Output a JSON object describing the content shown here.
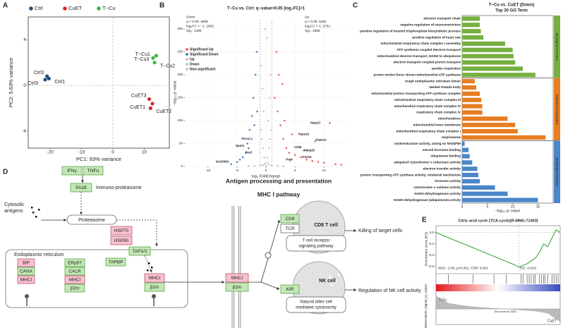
{
  "chart_data": [
    {
      "type": "scatter",
      "label": "A",
      "frame": true,
      "zero_lines": true,
      "legend": "top",
      "xlabel": "PC1: 93% variance",
      "ylabel": "PC2: 5.63% variance",
      "xlim": [
        -27,
        18
      ],
      "ylim": [
        -5.5,
        6
      ],
      "xticks": [
        -20,
        -10,
        0,
        10
      ],
      "yticks": [
        -4,
        0,
        4
      ],
      "series": [
        {
          "name": "Ctrl",
          "color": "#1f4e79",
          "x": [
            -21,
            -21.6,
            -20.4
          ],
          "y": [
            0.8,
            0.5,
            0.6
          ],
          "labels": [
            "Ctrl2",
            "Ctrl3",
            "Ctrl1"
          ]
        },
        {
          "name": "CuET",
          "color": "#d62728",
          "x": [
            11.6,
            12.6,
            12.0
          ],
          "y": [
            -1.2,
            -1.6,
            -2.0
          ],
          "labels": [
            "CuET3",
            "CuET1",
            "CuET2"
          ]
        },
        {
          "name": "T−Cu",
          "color": "#3cb34a",
          "x": [
            12.8,
            13.8,
            13.3
          ],
          "y": [
            2.4,
            2.6,
            2.0
          ],
          "labels": [
            "T−Cu1",
            "T−Cu3",
            "T−Cu2"
          ]
        }
      ]
    },
    {
      "type": "scatter",
      "label": "B",
      "grid": true,
      "legend": "upper-left",
      "title": "T−Cu vs. Ctrl: q−value<0.05   |log₂FC|>1",
      "xlabel": "log₂ FoldChange",
      "ylabel": "−log₁₀ p−value",
      "xlim": [
        -14,
        14
      ],
      "ylim": [
        0,
        320
      ],
      "xticks": [
        -10,
        -5,
        0,
        5,
        10
      ],
      "yticks": [
        0,
        50,
        100,
        150,
        200,
        250,
        300
      ],
      "fc_threshold": 1,
      "annotations": [
        [
          "Down",
          "q < 0.05: 4958",
          "log₂FC < −1: 1863",
          "Sig.: 1396"
        ],
        [
          "Up",
          "q < 0.05: 5291",
          "log₂FC > 1: 2751",
          "Sig.: 1995"
        ]
      ],
      "series": [
        {
          "name": "Significant Up",
          "color": "#e8474a",
          "x": [
            1.5,
            2,
            2.5,
            3,
            3.5,
            4,
            5,
            6,
            7,
            8,
            9,
            10,
            12,
            13,
            2.2,
            3.2,
            4.5,
            6.5,
            8.5,
            11,
            1.8,
            2.8
          ],
          "y": [
            150,
            120,
            90,
            60,
            40,
            30,
            25,
            20,
            15,
            12,
            10,
            8,
            5,
            4,
            200,
            100,
            70,
            35,
            55,
            95,
            250,
            180
          ]
        },
        {
          "name": "Significant Down",
          "color": "#2b6cb0",
          "x": [
            -1.5,
            -2,
            -2.5,
            -3,
            -3.5,
            -4,
            -4.5,
            -5,
            -6,
            -1.8,
            -2.2,
            -2.8,
            -3.2,
            -1.6,
            -2.4
          ],
          "y": [
            120,
            90,
            60,
            40,
            30,
            20,
            15,
            10,
            5,
            200,
            150,
            80,
            50,
            250,
            110
          ]
        },
        {
          "name": "Up",
          "color": "#f4a6b8",
          "x": [
            0.3,
            0.5,
            0.7,
            0.9,
            0.4,
            0.6,
            0.8,
            0.2
          ],
          "y": [
            20,
            40,
            60,
            80,
            100,
            150,
            200,
            280
          ]
        },
        {
          "name": "Down",
          "color": "#8ec5e8",
          "x": [
            -0.3,
            -0.5,
            -0.7,
            -0.9,
            -0.4,
            -0.6,
            -0.8,
            -0.2
          ],
          "y": [
            20,
            40,
            60,
            80,
            120,
            170,
            220,
            300
          ]
        },
        {
          "name": "Non-significant",
          "color": "#bbbbbb",
          "x": [
            -1,
            -0.5,
            0,
            0.5,
            1,
            -2,
            2,
            -3,
            3,
            0.2,
            -0.2
          ],
          "y": [
            2,
            3,
            1,
            4,
            2,
            1,
            1,
            0.5,
            0.5,
            8,
            6
          ]
        }
      ],
      "point_labels": [
        {
          "text": "Hspa1l",
          "x": 8.5,
          "y": 95
        },
        {
          "text": "Hspa1b",
          "x": 6.5,
          "y": 70
        },
        {
          "text": "Hspa1a",
          "x": 9.5,
          "y": 58
        },
        {
          "text": "Mmp25",
          "x": 7.5,
          "y": 35
        },
        {
          "text": "Cd36",
          "x": 5.5,
          "y": 42
        },
        {
          "text": "Prg4",
          "x": 4,
          "y": 15
        },
        {
          "text": "Trim15",
          "x": 7,
          "y": 20
        },
        {
          "text": "Pars2",
          "x": -3.5,
          "y": 60
        },
        {
          "text": "Gpnt1",
          "x": -4.5,
          "y": 45
        },
        {
          "text": "Gm20631",
          "x": -7.5,
          "y": 10
        },
        {
          "text": "Dcaf",
          "x": -3,
          "y": 30
        }
      ]
    },
    {
      "type": "bar",
      "label": "C",
      "orientation": "horizontal",
      "title": "T−Cu vs. CuET (Down)",
      "subtitle": "Top 30 GO Term",
      "xlabel": "−log₁₀ p−value",
      "xlim": [
        0,
        18
      ],
      "xticks": [
        0,
        5,
        10,
        15
      ],
      "series": [
        {
          "name": "Biological Process",
          "color": "#76b041",
          "categories": [
            "electron transport chain",
            "negative regulation of vasoconstriction",
            "positive regulation of inositol trisphosphate biosynthetic process",
            "positive regulation of heart rate",
            "mitochondrial respiratory chain complex I assembly",
            "ATP synthesis coupled electron transport",
            "mitochondrial electron transport, NADH to ubiquinone",
            "electron transport coupled proton transport",
            "aerobic respiration",
            "proton motive force−driven mitochondrial ATP synthesis"
          ],
          "values": [
            3.5,
            3.5,
            3.7,
            4.2,
            8.5,
            10,
            10.2,
            10.5,
            12,
            14.5
          ],
          "label_colors": [
            "#c62828",
            "#111",
            "#111",
            "#111",
            "#c62828",
            "#c62828",
            "#c62828",
            "#c62828",
            "#c62828",
            "#c62828"
          ]
        },
        {
          "name": "Cellular Component",
          "color": "#e67e22",
          "categories": [
            "rough endoplasmic reticulum lumen",
            "Weibel−Palade body",
            "mitochondrial proton−transporting ATP synthase complex",
            "mitochondrial respiratory chain complex III",
            "mitochondrial respiratory chain complex IV",
            "respiratory chain complex IV",
            "mitochondrion",
            "mitochondrial inner membrane",
            "mitochondrial respiratory chain complex I",
            "respirasome"
          ],
          "values": [
            2.5,
            2.8,
            3.5,
            3.8,
            4,
            4,
            9,
            10.5,
            11,
            16.5
          ],
          "label_colors": [
            "#111",
            "#111",
            "#c62828",
            "#c62828",
            "#c62828",
            "#c62828",
            "#c62828",
            "#c62828",
            "#c62828",
            "#c62828"
          ]
        },
        {
          "name": "Molecular Function",
          "color": "#4a86c8",
          "categories": [
            "oxidoreductase activity, acting on NAD(P)H",
            "steroid hormone binding",
            "ubiquinone binding",
            "ubiquinol−cytochrome−c reductase activity",
            "electron transfer activity",
            "proton−transporting ATP synthase activity, rotational mechanism",
            "hormone activity",
            "cytochrome−c oxidase activity",
            "NADH dehydrogenase activity",
            "NADH dehydrogenase (ubiquinone) activity"
          ],
          "values": [
            0.5,
            1.3,
            1.5,
            2,
            3,
            3.2,
            3.5,
            6.5,
            9,
            15
          ],
          "label_colors": [
            "#c62828",
            "#111",
            "#111",
            "#c62828",
            "#c62828",
            "#c62828",
            "#111",
            "#c62828",
            "#c62828",
            "#c62828"
          ]
        }
      ]
    },
    {
      "type": "line",
      "label": "E",
      "title": "Citric acid cycle (TCA cycle)(R-MMU-71403)",
      "ylabel": "Enrichment score (ES)",
      "y2label": "Ranked Metric (signal_to_noise)",
      "ylim": [
        -0.7,
        0.12
      ],
      "yticks": [
        {
          "value": 0,
          "label": "0.0"
        },
        -0.2,
        -0.4,
        -0.6
      ],
      "y2lim": [
        -1,
        1
      ],
      "color": "#2ca02c",
      "values": [
        0,
        -0.03,
        -0.06,
        -0.09,
        -0.12,
        -0.15,
        -0.18,
        -0.21,
        -0.24,
        -0.27,
        -0.3,
        -0.33,
        -0.36,
        -0.39,
        -0.42,
        -0.45,
        -0.48,
        -0.51,
        -0.54,
        -0.57,
        -0.61,
        -0.58,
        -0.55,
        -0.5,
        -0.45,
        -0.35,
        -0.2,
        -0.25,
        -0.1,
        0.05,
        0
      ],
      "hits": [
        3,
        9,
        14,
        17,
        20.5,
        21,
        22,
        22.5,
        23,
        23.6,
        24,
        25,
        25.5,
        26,
        26.3,
        27,
        28,
        28.5,
        29,
        29.5
      ],
      "metric_values": [
        0.9,
        0.4,
        0.25,
        0.15,
        0.08,
        0.03,
        -0.02,
        -0.08,
        -0.15,
        -0.3,
        -0.9
      ],
      "annotations": [
        "NES: -2.05, p<0.001, FDR: 0.001",
        "ES: -0.610"
      ],
      "groups": [
        "T-Cu",
        "CuET"
      ],
      "zero_note": "Zero score at 13040"
    }
  ],
  "diagram": {
    "label": "D",
    "title": "Antigen processing and presentation",
    "subtitle": "MHC I pathway",
    "ifng": "IFNγ",
    "tnfa": "TNFα",
    "pa28": "PA28",
    "immuno": "Immuno-proteasome",
    "cytosolic": [
      "Cytosolic",
      "antigens"
    ],
    "proteasome": "Proteasome",
    "hsp70": "HSP70",
    "hsp90": "HSP90",
    "tap": "TAP1/2",
    "er": "Endoplasmic reticulum",
    "er_proteins": [
      "BiP",
      "CANX",
      "MHCI"
    ],
    "plc": [
      "ERp57",
      "CALR",
      "MHCI",
      "β2m"
    ],
    "tapbp": "TAPBP",
    "exit_complex": [
      "MHCI",
      "β2m"
    ],
    "surface_complex": [
      "MHCI",
      "β2m"
    ],
    "cd8": "CD8",
    "tcr": "TCR",
    "cd8_cell": "CD8 T cell",
    "tcr_pathway": [
      "T cell receptor",
      "signaling pathway"
    ],
    "killing": "Killing of target cells",
    "kir": "KIR",
    "nk_cell": "NK cell",
    "nk_pathway": [
      "Natural killer cell",
      "mediated cytotoxicity"
    ],
    "nk_regulation": "Regulation of NK cell activity"
  }
}
